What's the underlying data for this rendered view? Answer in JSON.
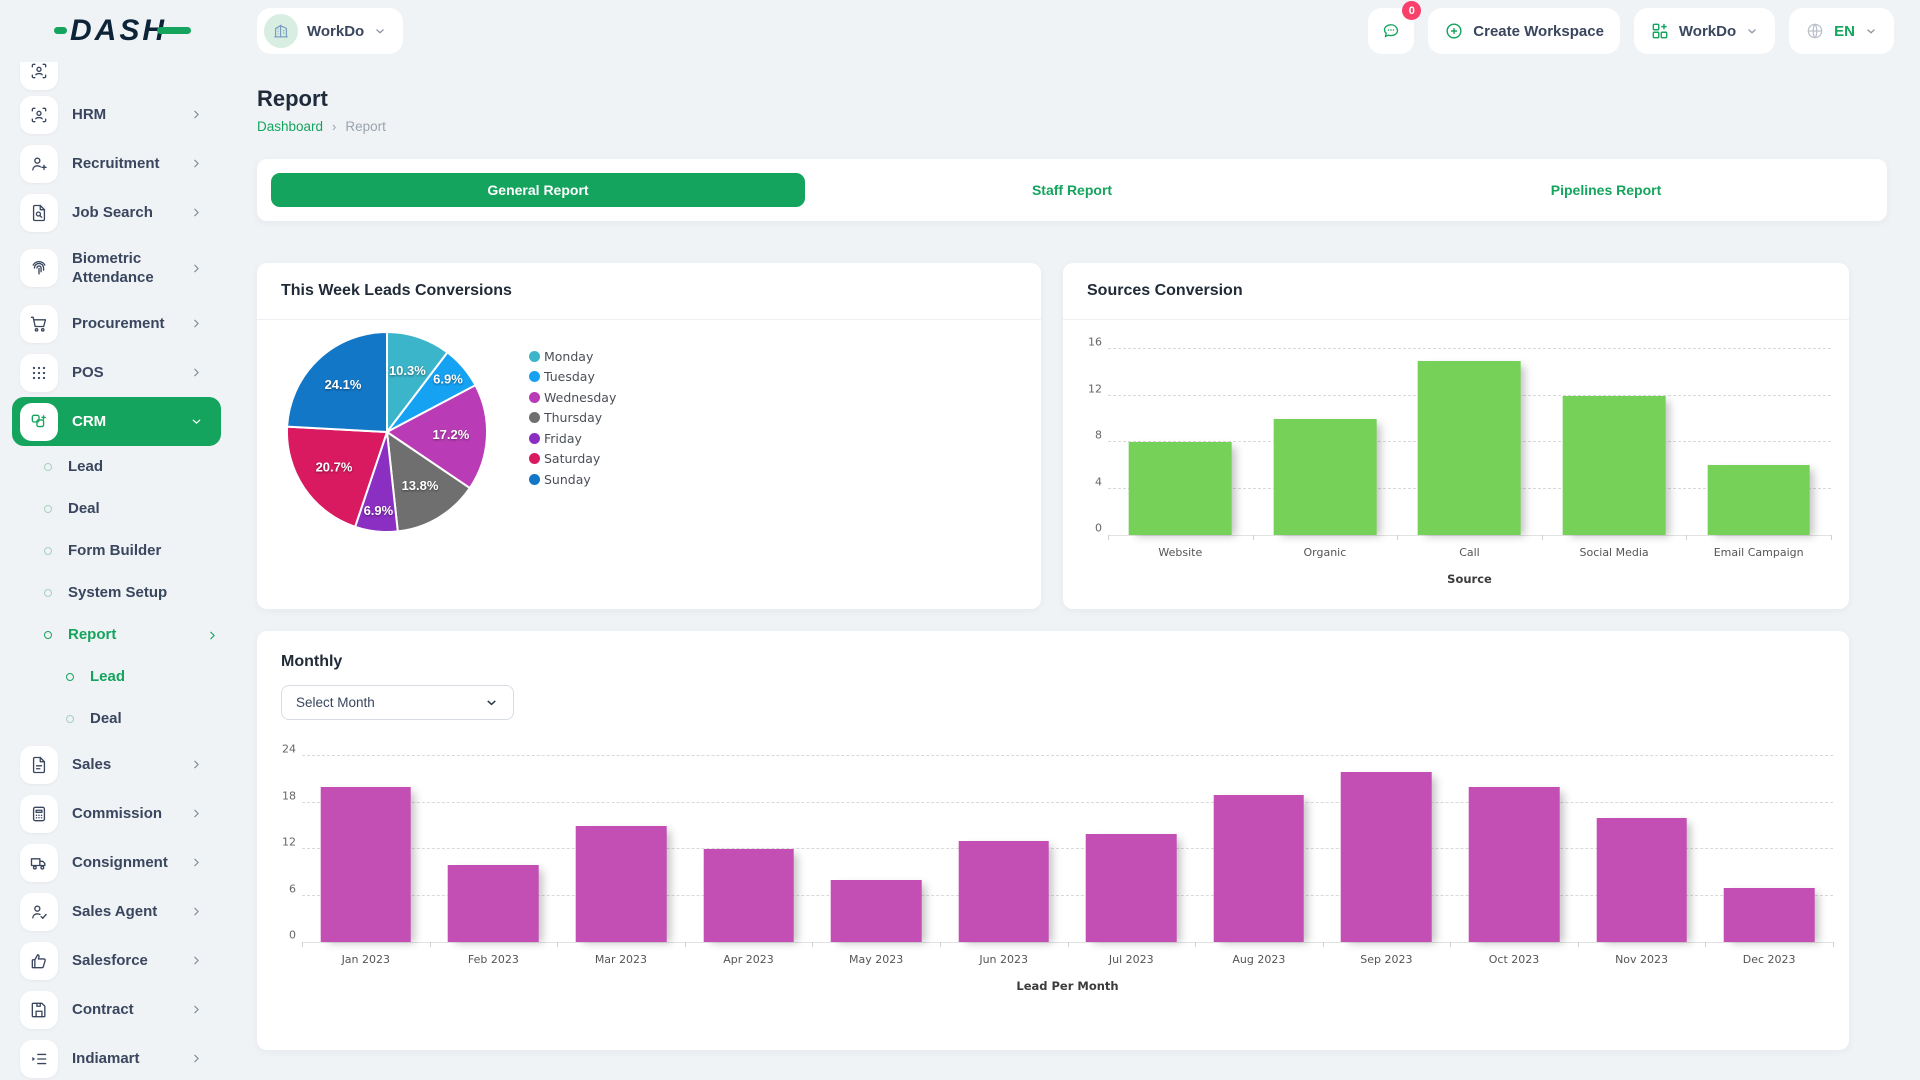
{
  "brand": {
    "logo_text": "DASH"
  },
  "topbar": {
    "workspace_label": "WorkDo",
    "messages_badge": "0",
    "create_workspace_label": "Create Workspace",
    "app_menu_label": "WorkDo",
    "language": "EN"
  },
  "sidebar": {
    "items": [
      {
        "label": "",
        "icon": "user-target-icon",
        "partial": true
      },
      {
        "label": "HRM",
        "icon": "user-target-icon",
        "chevron": "right"
      },
      {
        "label": "Recruitment",
        "icon": "user-plus-icon",
        "chevron": "right"
      },
      {
        "label": "Job Search",
        "icon": "file-search-icon",
        "chevron": "right"
      },
      {
        "label": "Biometric Attendance",
        "icon": "fingerprint-icon",
        "chevron": "right",
        "tall": true
      },
      {
        "label": "Procurement",
        "icon": "cart-icon",
        "chevron": "right"
      },
      {
        "label": "POS",
        "icon": "grid-icon",
        "chevron": "right"
      },
      {
        "label": "CRM",
        "icon": "apps-icon",
        "chevron": "down",
        "active": true
      },
      {
        "label": "Lead",
        "level": 2
      },
      {
        "label": "Deal",
        "level": 2
      },
      {
        "label": "Form Builder",
        "level": 2
      },
      {
        "label": "System Setup",
        "level": 2
      },
      {
        "label": "Report",
        "level": 2,
        "active": true,
        "chevron": "right"
      },
      {
        "label": "Lead",
        "level": 3,
        "active": true
      },
      {
        "label": "Deal",
        "level": 3
      },
      {
        "label": "Sales",
        "icon": "file-icon",
        "chevron": "right"
      },
      {
        "label": "Commission",
        "icon": "calculator-icon",
        "chevron": "right"
      },
      {
        "label": "Consignment",
        "icon": "truck-icon",
        "chevron": "right"
      },
      {
        "label": "Sales Agent",
        "icon": "user-check-icon",
        "chevron": "right"
      },
      {
        "label": "Salesforce",
        "icon": "thumb-up-icon",
        "chevron": "right"
      },
      {
        "label": "Contract",
        "icon": "floppy-icon",
        "chevron": "right"
      },
      {
        "label": "Indiamart",
        "icon": "list-icon",
        "chevron": "right"
      }
    ]
  },
  "page": {
    "title": "Report",
    "breadcrumb_home": "Dashboard",
    "breadcrumb_sep": "›",
    "breadcrumb_current": "Report"
  },
  "tabs": [
    {
      "label": "General Report",
      "active": true
    },
    {
      "label": "Staff Report",
      "active": false
    },
    {
      "label": "Pipelines Report",
      "active": false
    }
  ],
  "monthly": {
    "select_label": "Select Month"
  },
  "colors": {
    "accent_green": "#14a45d",
    "badge_red": "#f9406a",
    "sources_bar": "#76d159",
    "monthly_bar": "#c44fb4"
  },
  "chart_data": [
    {
      "type": "pie",
      "title": "This Week Leads Conversions",
      "labels": [
        "Monday",
        "Tuesday",
        "Wednesday",
        "Thursday",
        "Friday",
        "Saturday",
        "Sunday"
      ],
      "values": [
        3,
        2,
        5,
        4,
        2,
        6,
        7
      ],
      "percent_labels": [
        "10.3%",
        "6.9%",
        "17.2%",
        "13.8%",
        "6.9%",
        "20.7%",
        "24.1%"
      ],
      "colors": [
        "#3ab5c9",
        "#16a2f3",
        "#b93cb6",
        "#6f6f6f",
        "#8b2fc3",
        "#da1a60",
        "#1377c7"
      ],
      "legend_position": "right"
    },
    {
      "type": "bar",
      "title": "Sources Conversion",
      "categories": [
        "Website",
        "Organic",
        "Call",
        "Social Media",
        "Email Campaign"
      ],
      "values": [
        8,
        10,
        15,
        12,
        6
      ],
      "xlabel": "Source",
      "ylabel": "",
      "yticks": [
        0,
        4,
        8,
        12,
        16
      ],
      "ylim": [
        0,
        16
      ],
      "bar_color": "#76d159",
      "grid": "dashed horizontal"
    },
    {
      "type": "bar",
      "title": "Monthly",
      "categories": [
        "Jan 2023",
        "Feb 2023",
        "Mar 2023",
        "Apr 2023",
        "May 2023",
        "Jun 2023",
        "Jul 2023",
        "Aug 2023",
        "Sep 2023",
        "Oct 2023",
        "Nov 2023",
        "Dec 2023"
      ],
      "values": [
        20,
        10,
        15,
        12,
        8,
        13,
        14,
        19,
        22,
        20,
        16,
        7
      ],
      "xlabel": "Lead Per Month",
      "ylabel": "",
      "yticks": [
        0,
        6,
        12,
        18,
        24
      ],
      "ylim": [
        0,
        24
      ],
      "bar_color": "#c44fb4",
      "grid": "dashed horizontal"
    }
  ]
}
